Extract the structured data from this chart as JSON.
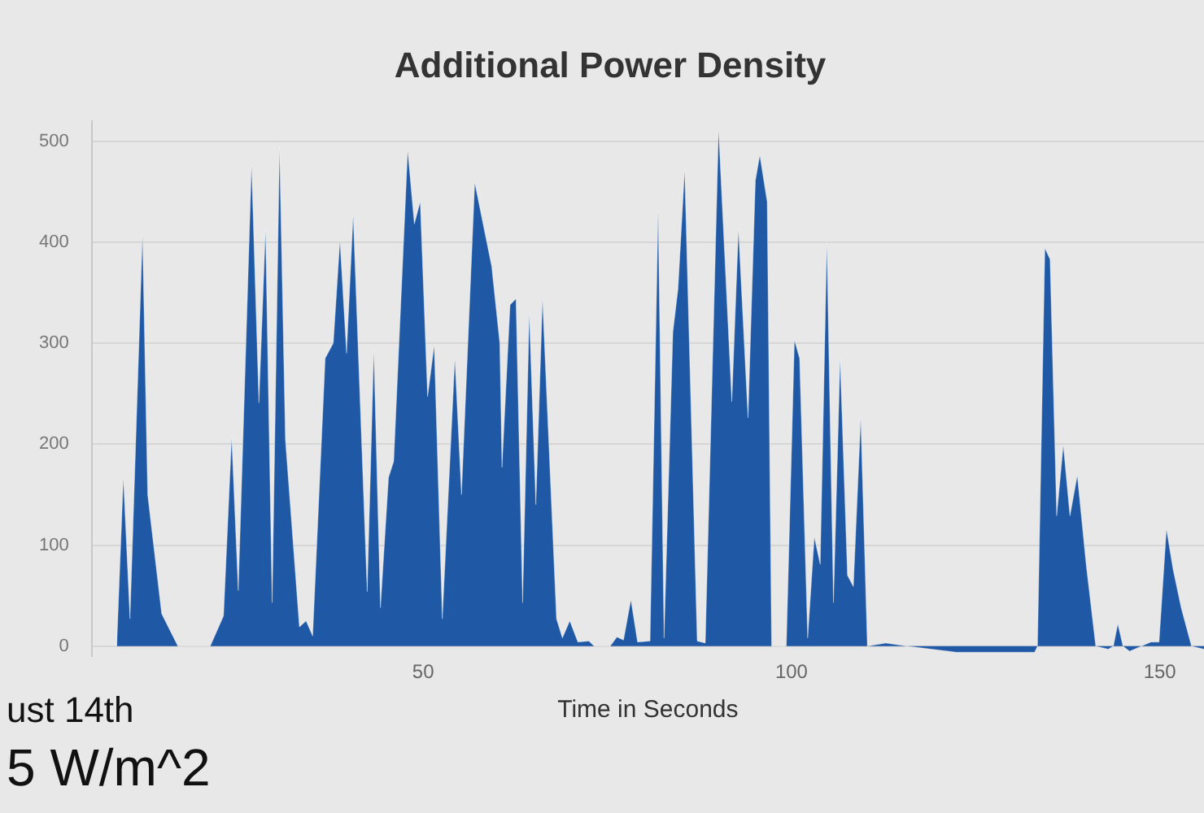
{
  "chart_data": {
    "type": "area",
    "title": "Additional Power Density",
    "xlabel": "Time in Seconds",
    "x": [
      8.4,
      9.3,
      10.2,
      11.9,
      12.6,
      14.5,
      16.7,
      21.1,
      22.9,
      24,
      24.9,
      26.7,
      27.7,
      28.6,
      29.5,
      30.5,
      31.3,
      33.2,
      34.1,
      35,
      36.7,
      37.8,
      38.7,
      39.6,
      40.5,
      42.4,
      43.3,
      44.2,
      45.3,
      46,
      47.9,
      48.8,
      49.6,
      50.6,
      51.5,
      52.6,
      54.3,
      55.2,
      57,
      59.3,
      60.4,
      60.7,
      61.8,
      62.6,
      63.5,
      64.4,
      65.3,
      66.2,
      68.1,
      68.9,
      69.9,
      71,
      72.5,
      73.2,
      75.4,
      76.3,
      77.2,
      78.2,
      79.1,
      80.8,
      81.9,
      82.7,
      83.9,
      84.6,
      85.5,
      87.2,
      88.3,
      90.1,
      91.9,
      92.8,
      94.1,
      95.1,
      95.7,
      96.7,
      97.3,
      99.3,
      100.4,
      101.1,
      102.2,
      103.1,
      103.9,
      104.8,
      105.7,
      106.6,
      107.6,
      108.4,
      109.4,
      110.3,
      112.8,
      115.7,
      122.4,
      133,
      133.4,
      134.4,
      135.1,
      136,
      136.9,
      137.8,
      138.8,
      140,
      141.3,
      143,
      143.7,
      144.3,
      145,
      145.9,
      148.8,
      149.9,
      150.9,
      151.8,
      152.9,
      154.3,
      156
    ],
    "series": [
      {
        "color": "#1f58a4",
        "values": [
          0,
          167,
          27,
          408,
          150,
          32,
          0,
          0,
          30,
          207,
          55,
          477,
          241,
          413,
          43,
          494,
          204,
          19,
          25,
          10,
          285,
          300,
          402,
          290,
          427,
          54,
          293,
          38,
          167,
          183,
          491,
          418,
          440,
          247,
          298,
          27,
          285,
          150,
          459,
          376,
          300,
          177,
          338,
          344,
          43,
          330,
          140,
          344,
          27,
          8,
          25,
          4,
          5,
          0,
          0,
          9,
          6,
          46,
          4,
          5,
          432,
          8,
          311,
          354,
          472,
          5,
          3,
          512,
          242,
          413,
          226,
          461,
          486,
          440,
          0,
          0,
          303,
          285,
          8,
          108,
          81,
          400,
          43,
          285,
          70,
          59,
          226,
          0,
          3,
          0,
          -6,
          -6,
          0,
          394,
          383,
          129,
          199,
          129,
          169,
          81,
          0,
          -3,
          0,
          22,
          0,
          -5,
          4,
          4,
          116,
          76,
          38,
          0,
          -3
        ]
      }
    ],
    "xlim": [
      5,
      156
    ],
    "xticks": [
      50,
      100,
      150
    ],
    "ylim": [
      -10,
      520
    ],
    "yticks": [
      0,
      100,
      200,
      300,
      400,
      500
    ],
    "grid": "y",
    "legend": false,
    "marker": "none",
    "annotations": [
      "ust 14th",
      "5 W/m^2"
    ]
  }
}
